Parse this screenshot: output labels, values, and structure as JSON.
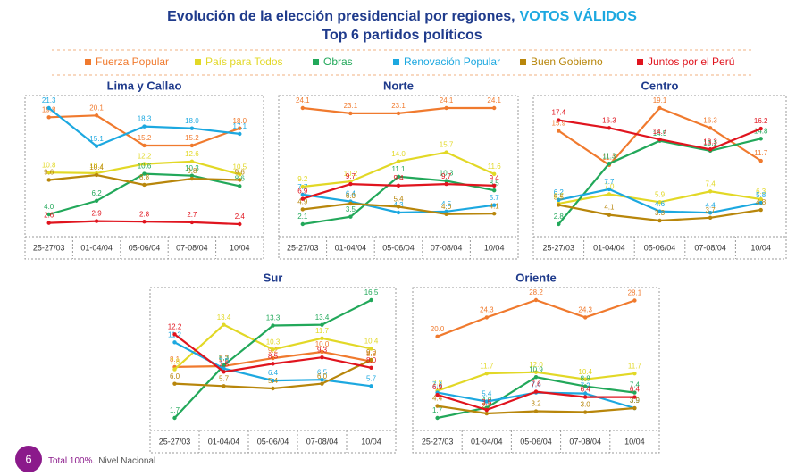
{
  "header": {
    "title": "Evolución de la elección presidencial por regiones,",
    "highlight": "VOTOS VÁLIDOS",
    "subtitle": "Top 6 partidos políticos"
  },
  "chart_data": [
    {
      "type": "line",
      "title": "Lima y Callao",
      "categories": [
        "25-27/03",
        "01-04/04",
        "05-06/04",
        "07-08/04",
        "10/04"
      ],
      "series": [
        {
          "name": "Fuerza Popular",
          "color": "#f07a2e",
          "values": [
            19.8,
            20.1,
            15.2,
            15.2,
            18
          ],
          "value_labels": [
            "19.8",
            "20.1",
            "15.2",
            "15.2",
            "18.0"
          ]
        },
        {
          "name": "País para Todos",
          "color": "#e2d826",
          "values": [
            10.8,
            10.7,
            12.2,
            12.6,
            10.5
          ],
          "value_labels": [
            "10.8",
            "10.7",
            "12.2",
            "12.6",
            "10.5"
          ]
        },
        {
          "name": "Obras",
          "color": "#22a85a",
          "values": [
            4,
            6.2,
            10.6,
            10.3,
            8.6
          ],
          "value_labels": [
            "4.0",
            "6.2",
            "10.6",
            "10.3",
            "8.6"
          ]
        },
        {
          "name": "Renovación Popular",
          "color": "#1ca8e0",
          "values": [
            21.3,
            15.1,
            18.3,
            18,
            17.1
          ],
          "value_labels": [
            "21.3",
            "15.1",
            "18.3",
            "18.0",
            "17.1"
          ]
        },
        {
          "name": "Buen Gobierno",
          "color": "#b8860b",
          "values": [
            9.6,
            10.4,
            8.8,
            9.8,
            9.6
          ],
          "value_labels": [
            "9.6",
            "10.4",
            "8.8",
            "9.8",
            "9.6"
          ]
        },
        {
          "name": "Juntos por el Perú",
          "color": "#e0141e",
          "values": [
            2.6,
            2.9,
            2.8,
            2.7,
            2.4
          ],
          "value_labels": [
            "2.6",
            "2.9",
            "2.8",
            "2.7",
            "2.4"
          ]
        }
      ]
    },
    {
      "type": "line",
      "title": "Norte",
      "categories": [
        "25-27/03",
        "01-04/04",
        "05-06/04",
        "07-08/04",
        "10/04"
      ],
      "series": [
        {
          "name": "Fuerza Popular",
          "color": "#f07a2e",
          "values": [
            24.1,
            23.1,
            23.1,
            24.1,
            24.1
          ],
          "value_labels": [
            "24.1",
            "23.1",
            "23.1",
            "24.1",
            "24.1"
          ]
        },
        {
          "name": "País para Todos",
          "color": "#e2d826",
          "values": [
            9.2,
            10.2,
            14,
            15.7,
            11.6
          ],
          "value_labels": [
            "9.2",
            "10.2",
            "14.0",
            "15.7",
            "11.6"
          ]
        },
        {
          "name": "Obras",
          "color": "#22a85a",
          "values": [
            2.1,
            3.5,
            11.1,
            10.3,
            8.5
          ],
          "value_labels": [
            "2.1",
            "3.5",
            "11.1",
            "10.3",
            "8.5"
          ]
        },
        {
          "name": "Renovación Popular",
          "color": "#1ca8e0",
          "values": [
            7.7,
            6.4,
            4.3,
            4.5,
            5.7
          ],
          "value_labels": [
            "7.7",
            "6.4",
            "4.3",
            "4.5",
            "5.7"
          ]
        },
        {
          "name": "Buen Gobierno",
          "color": "#b8860b",
          "values": [
            4.9,
            6,
            5.4,
            4,
            4.1
          ],
          "value_labels": [
            "4.9",
            "6.0",
            "5.4",
            "4.0",
            "4.1"
          ]
        },
        {
          "name": "Juntos por el Perú",
          "color": "#e0141e",
          "values": [
            6.9,
            9.7,
            9.4,
            9.7,
            9.4
          ],
          "value_labels": [
            "6.9",
            "9.7",
            "9.4",
            "9.7",
            "9.4"
          ]
        }
      ]
    },
    {
      "type": "line",
      "title": "Centro",
      "categories": [
        "25-27/03",
        "01-04/04",
        "05-06/04",
        "07-08/04",
        "10/04"
      ],
      "series": [
        {
          "name": "Fuerza Popular",
          "color": "#f07a2e",
          "values": [
            15.9,
            11.1,
            19.1,
            16.3,
            11.7
          ],
          "value_labels": [
            "15.9",
            "11.1",
            "19.1",
            "16.3",
            "11.7"
          ]
        },
        {
          "name": "País para Todos",
          "color": "#e2d826",
          "values": [
            5.7,
            7,
            5.9,
            7.4,
            6.3
          ],
          "value_labels": [
            "5.7",
            "7.0",
            "5.9",
            "7.4",
            "6.3"
          ]
        },
        {
          "name": "Obras",
          "color": "#22a85a",
          "values": [
            2.8,
            11.3,
            14.5,
            13.1,
            14.8
          ],
          "value_labels": [
            "2.8",
            "11.3",
            "14.5",
            "13.1",
            "14.8"
          ]
        },
        {
          "name": "Renovación Popular",
          "color": "#1ca8e0",
          "values": [
            6.2,
            7.7,
            4.6,
            4.4,
            5.8
          ],
          "value_labels": [
            "6.2",
            "7.7",
            "4.6",
            "4.4",
            "5.8"
          ]
        },
        {
          "name": "Buen Gobierno",
          "color": "#b8860b",
          "values": [
            5.5,
            4.1,
            3.3,
            3.7,
            4.8
          ],
          "value_labels": [
            "5.5",
            "4.1",
            "3.3",
            "3.7",
            "4.8"
          ]
        },
        {
          "name": "Juntos por el Perú",
          "color": "#e0141e",
          "values": [
            17.4,
            16.3,
            14.7,
            13.3,
            16.2
          ],
          "value_labels": [
            "17.4",
            "16.3",
            "14.7",
            "13.3",
            "16.2"
          ]
        }
      ]
    },
    {
      "type": "line",
      "title": "Sur",
      "categories": [
        "25-27/03",
        "01-04/04",
        "05-06/04",
        "07-08/04",
        "10/04"
      ],
      "series": [
        {
          "name": "Fuerza Popular",
          "color": "#f07a2e",
          "values": [
            8.1,
            8.2,
            9.2,
            10,
            8.8
          ],
          "value_labels": [
            "8.1",
            "8.2",
            "9.2",
            "10.0",
            "8.8"
          ]
        },
        {
          "name": "País para Todos",
          "color": "#e2d826",
          "values": [
            7.8,
            13.4,
            10.3,
            11.7,
            10.4
          ],
          "value_labels": [
            "7.8",
            "13.4",
            "10.3",
            "11.7",
            "10.4"
          ]
        },
        {
          "name": "Obras",
          "color": "#22a85a",
          "values": [
            1.7,
            8.3,
            13.3,
            13.4,
            16.5
          ],
          "value_labels": [
            "1.7",
            "8.3",
            "13.3",
            "13.4",
            "16.5"
          ]
        },
        {
          "name": "Renovación Popular",
          "color": "#1ca8e0",
          "values": [
            11.2,
            7.9,
            6.4,
            6.5,
            5.7
          ],
          "value_labels": [
            "11.2",
            "7.9",
            "6.4",
            "6.5",
            "5.7"
          ]
        },
        {
          "name": "Buen Gobierno",
          "color": "#b8860b",
          "values": [
            6,
            5.7,
            5.4,
            6,
            9
          ],
          "value_labels": [
            "6.0",
            "5.7",
            "5.4",
            "6.0",
            "9.0"
          ]
        },
        {
          "name": "Juntos por el Perú",
          "color": "#e0141e",
          "values": [
            12.2,
            7.5,
            8.5,
            9.3,
            8
          ],
          "value_labels": [
            "12.2",
            "7.5",
            "8.5",
            "9.3",
            "8.0"
          ]
        }
      ]
    },
    {
      "type": "line",
      "title": "Oriente",
      "categories": [
        "25-27/03",
        "01-04/04",
        "05-06/04",
        "07-08/04",
        "10/04"
      ],
      "series": [
        {
          "name": "Fuerza Popular",
          "color": "#f07a2e",
          "values": [
            20,
            24.3,
            28.2,
            24.3,
            28.1
          ],
          "value_labels": [
            "20.0",
            "24.3",
            "28.2",
            "24.3",
            "28.1"
          ]
        },
        {
          "name": "País para Todos",
          "color": "#e2d826",
          "values": [
            7.8,
            11.7,
            12,
            10.4,
            11.7
          ],
          "value_labels": [
            "7.8",
            "11.7",
            "12.0",
            "10.4",
            "11.7"
          ]
        },
        {
          "name": "Obras",
          "color": "#22a85a",
          "values": [
            1.7,
            4,
            10.9,
            8.8,
            7.4
          ],
          "value_labels": [
            "1.7",
            "4.0",
            "10.9",
            "8.8",
            "7.4"
          ]
        },
        {
          "name": "Renovación Popular",
          "color": "#1ca8e0",
          "values": [
            7.4,
            5.4,
            7.4,
            7.2,
            3.9
          ],
          "value_labels": [
            "7.4",
            "5.4",
            "7.4",
            "7.2",
            "3.9"
          ]
        },
        {
          "name": "Buen Gobierno",
          "color": "#b8860b",
          "values": [
            4.4,
            2.7,
            3.2,
            3,
            3.9
          ],
          "value_labels": [
            "4.4",
            "2.7",
            "3.2",
            "3.0",
            "3.9"
          ]
        },
        {
          "name": "Juntos por el Perú",
          "color": "#e0141e",
          "values": [
            6.9,
            3.5,
            7.6,
            6.4,
            6.4
          ],
          "value_labels": [
            "6.9",
            "3.5",
            "7.6",
            "6.4",
            "6.4"
          ]
        }
      ]
    }
  ],
  "footer": {
    "page_number": "6",
    "note": "Total 100%.",
    "scope": "Nivel Nacional"
  }
}
